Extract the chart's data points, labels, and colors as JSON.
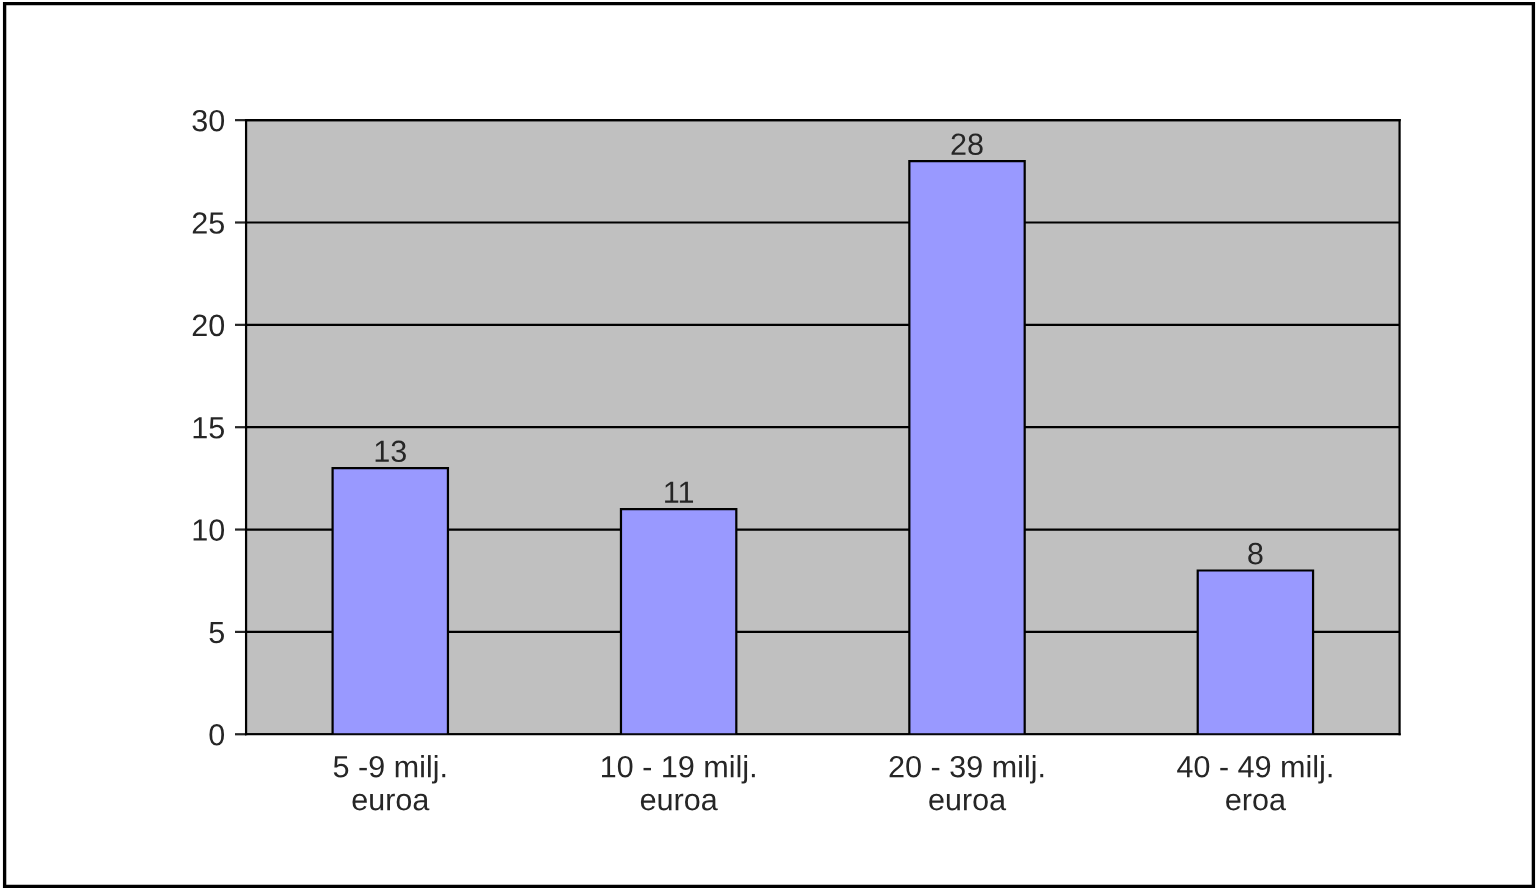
{
  "chart_data": {
    "type": "bar",
    "categories": [
      "5 -9 milj. euroa",
      "10 - 19 milj. euroa",
      "20 - 39 milj. euroa",
      "40 - 49 milj. eroa"
    ],
    "values": [
      13,
      11,
      28,
      8
    ],
    "color": "#9999ff",
    "ylim": [
      0,
      30
    ],
    "yticks": [
      0,
      5,
      10,
      15,
      20,
      25,
      30
    ],
    "grid": "y",
    "data_labels": true
  }
}
